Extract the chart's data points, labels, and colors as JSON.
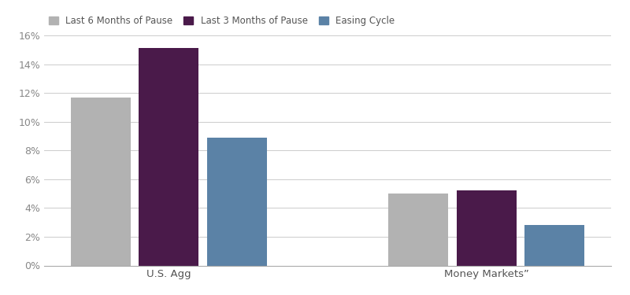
{
  "categories": [
    "U.S. Agg",
    "Money Markets”"
  ],
  "series": [
    {
      "label": "Last 6 Months of Pause",
      "color": "#b2b2b2",
      "values": [
        11.7,
        5.0
      ]
    },
    {
      "label": "Last 3 Months of Pause",
      "color": "#4a1a4a",
      "values": [
        15.1,
        5.2
      ]
    },
    {
      "label": "Easing Cycle",
      "color": "#5b82a6",
      "values": [
        8.9,
        2.8
      ]
    }
  ],
  "ylim": [
    0,
    0.16
  ],
  "yticks": [
    0.0,
    0.02,
    0.04,
    0.06,
    0.08,
    0.1,
    0.12,
    0.14,
    0.16
  ],
  "ytick_labels": [
    "0%",
    "2%",
    "4%",
    "6%",
    "8%",
    "10%",
    "12%",
    "14%",
    "16%"
  ],
  "bar_width": 0.12,
  "group_positions": [
    0.22,
    0.78
  ],
  "background_color": "#ffffff",
  "grid_color": "#cccccc",
  "legend_fontsize": 8.5,
  "tick_fontsize": 9,
  "cat_fontsize": 9.5,
  "tick_color": "#888888",
  "cat_color": "#555555"
}
